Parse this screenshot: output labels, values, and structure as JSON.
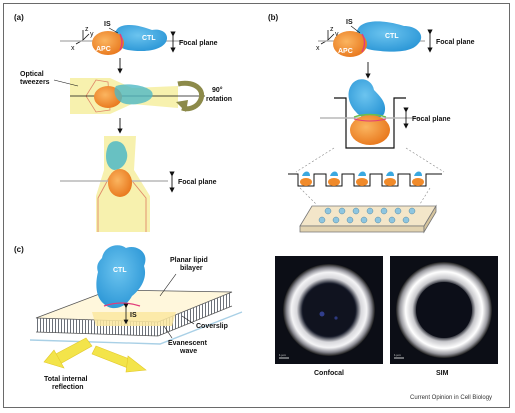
{
  "panels": {
    "a": {
      "label": "(a)",
      "is": "IS",
      "apc": "APC",
      "ctl": "CTL",
      "focal_plane_top": "Focal plane",
      "optical_tweezers_line1": "Optical",
      "optical_tweezers_line2": "tweezers",
      "rotation_line1": "90°",
      "rotation_line2": "rotation",
      "focal_plane_bottom": "Focal plane",
      "axis_z": "z",
      "axis_y": "y",
      "axis_x": "x"
    },
    "b": {
      "label": "(b)",
      "is": "IS",
      "apc": "APC",
      "ctl": "CTL",
      "focal_plane_top": "Focal plane",
      "focal_plane_well": "Focal plane",
      "axis_z": "z",
      "axis_y": "y",
      "axis_x": "x"
    },
    "c": {
      "label": "(c)",
      "ctl": "CTL",
      "bilayer_line1": "Planar lipid",
      "bilayer_line2": "bilayer",
      "is": "IS",
      "coverslip": "Coverslip",
      "evanescent_line1": "Evanescent",
      "evanescent_line2": "wave",
      "tir_line1": "Total internal",
      "tir_line2": "reflection",
      "confocal": "Confocal",
      "sim": "SIM",
      "scale_confocal": "1 µm",
      "scale_sim": "1 µm"
    }
  },
  "credit": "Current Opinion in Cell Biology",
  "colors": {
    "ctl": "#3aa8e0",
    "apc": "#f08a2a",
    "focal_band": "#f6efa0",
    "arrow_yellow": "#f3e44a",
    "rotation_arrow": "#8c8a4a",
    "bilayer": "#9aa0a8"
  }
}
